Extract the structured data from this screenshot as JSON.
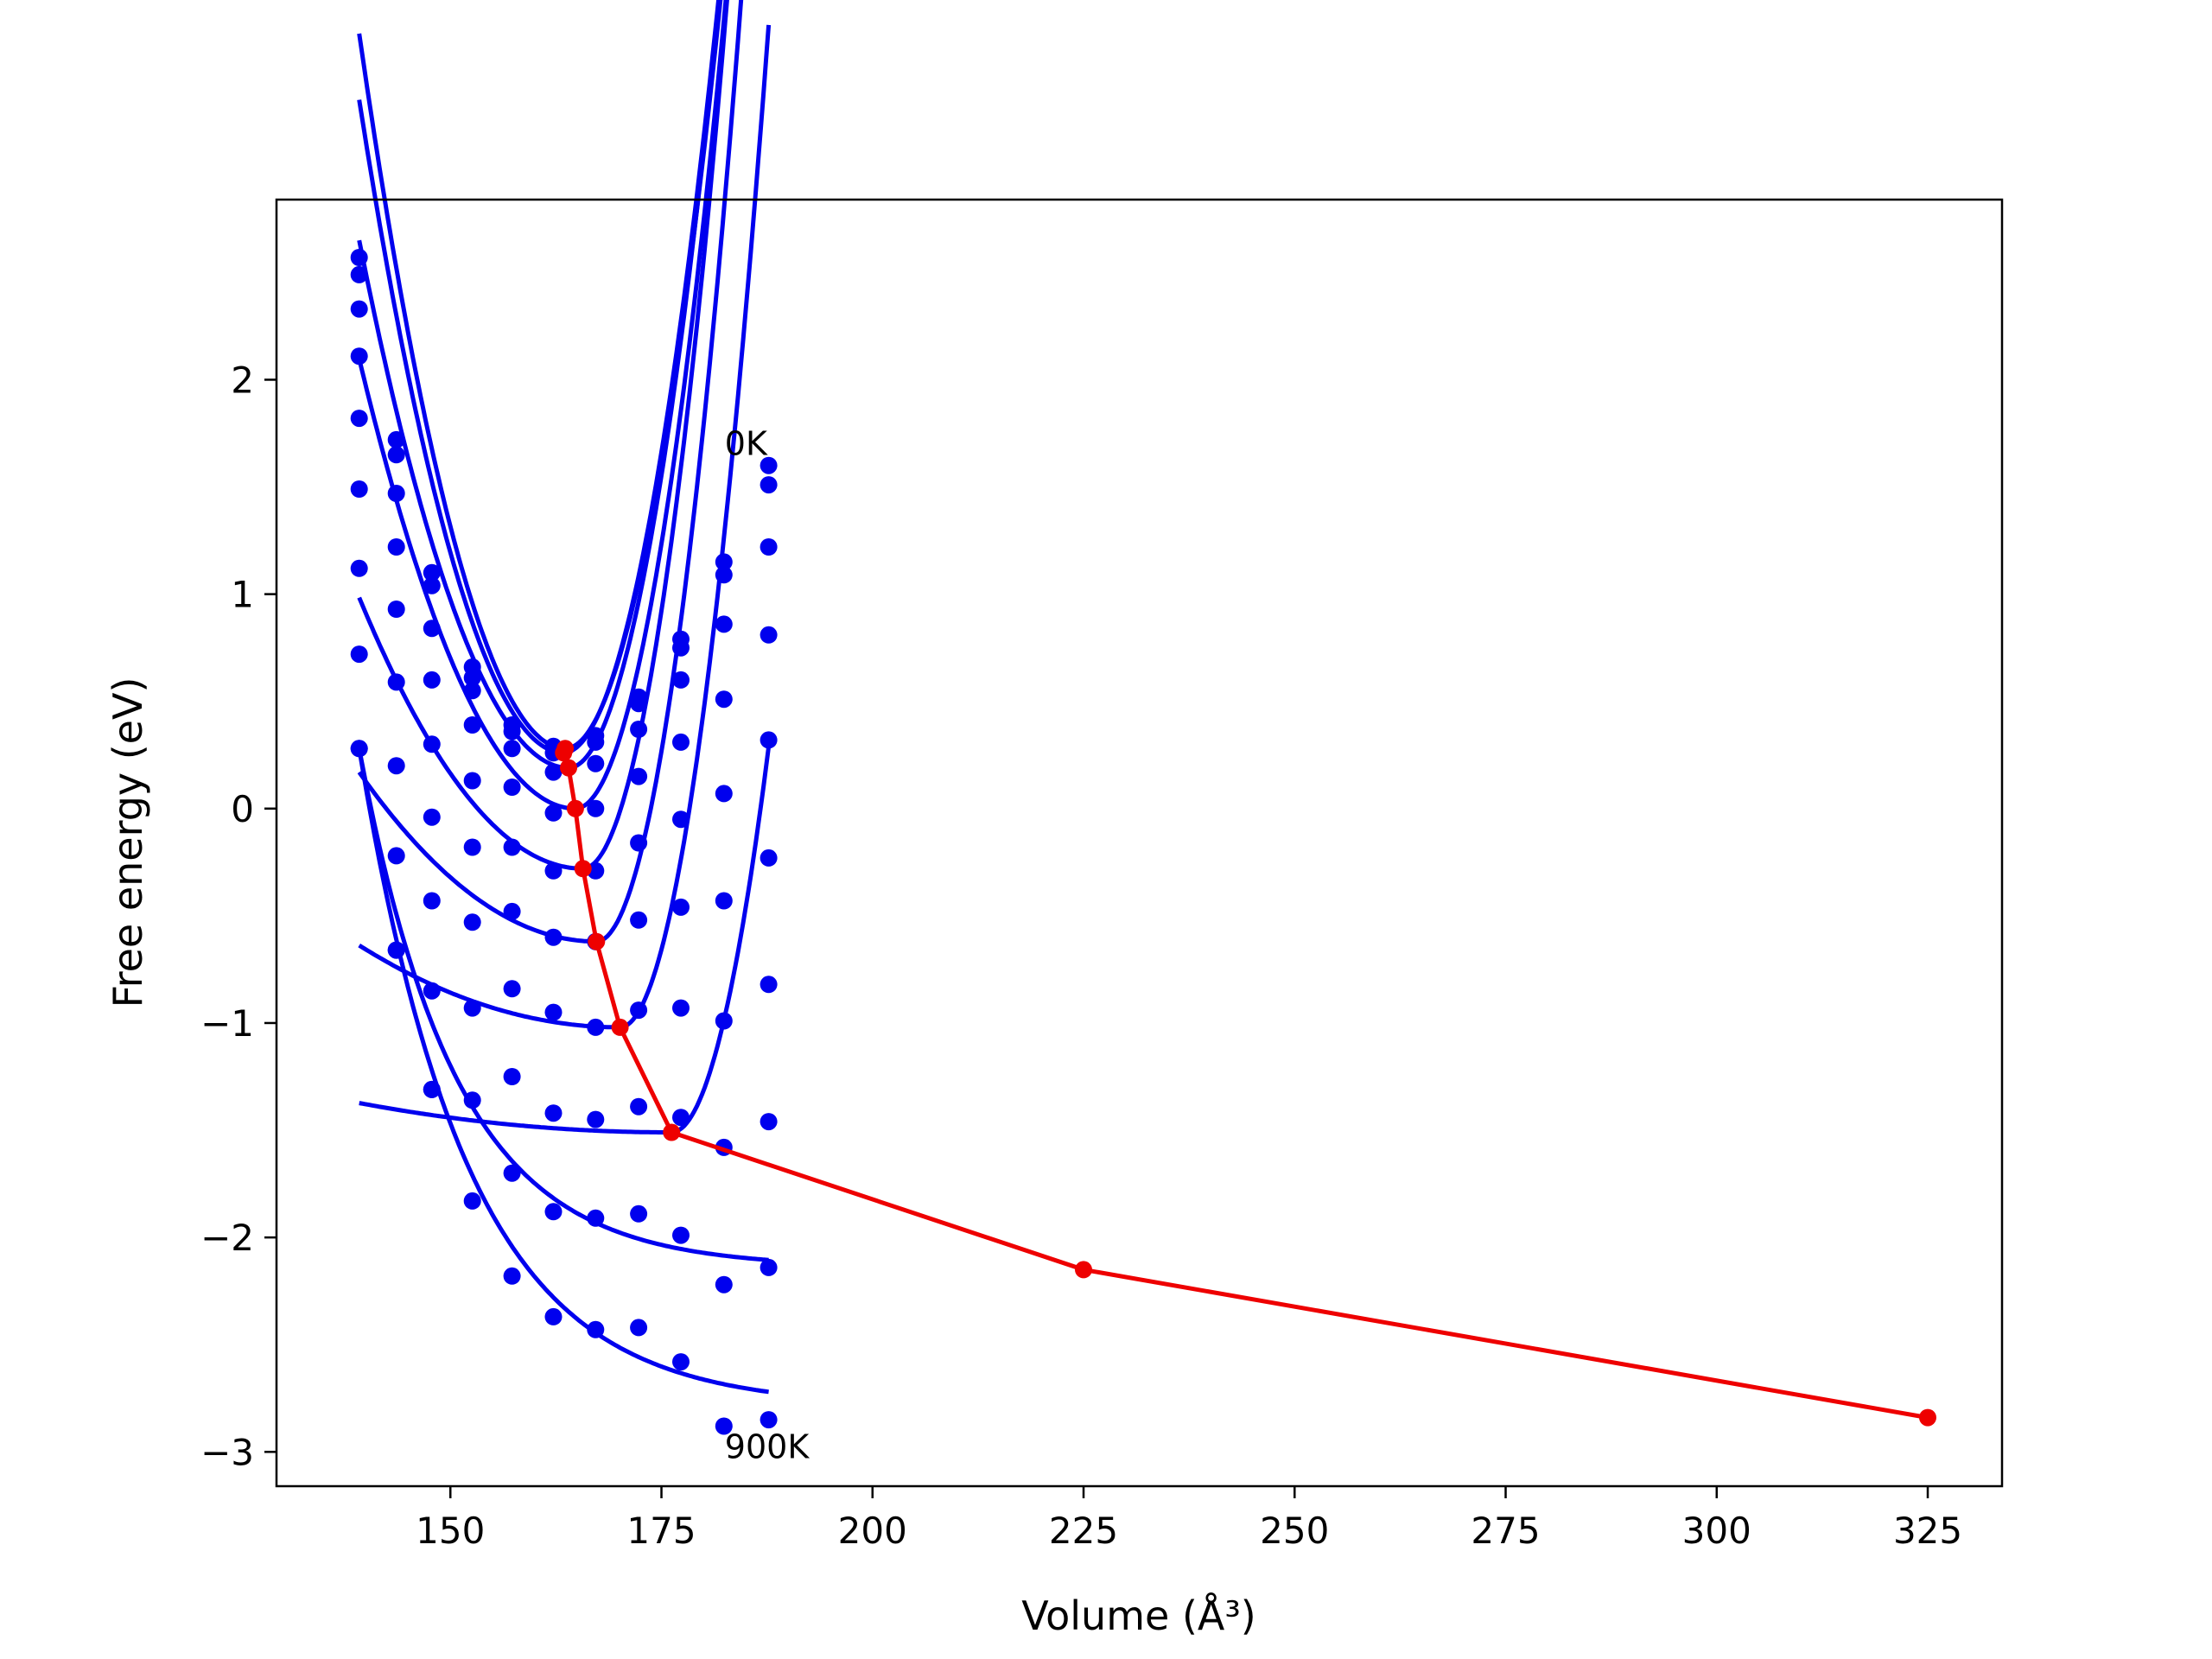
{
  "chart_data": {
    "type": "line",
    "xlabel": "Volume (Å³)",
    "ylabel": "Free energy (eV)",
    "xlim": [
      129.4,
      333.8
    ],
    "ylim": [
      -3.16,
      2.84
    ],
    "xticks": [
      150,
      175,
      200,
      225,
      250,
      275,
      300,
      325
    ],
    "yticks": [
      -3,
      -2,
      -1,
      0,
      1,
      2
    ],
    "ytick_labels": [
      "−3",
      "−2",
      "−1",
      "0",
      "1",
      "2"
    ],
    "grid": false,
    "colors": {
      "isotherm": "#0000ee",
      "minimum": "#ee0000"
    },
    "volumes": [
      139.2,
      143.6,
      147.8,
      152.6,
      157.3,
      162.2,
      167.2,
      172.3,
      177.3,
      182.4,
      187.7
    ],
    "isotherms": [
      {
        "energies": [
          2.57,
          1.72,
          1.1,
          0.66,
          0.39,
          0.29,
          0.34,
          0.52,
          0.79,
          1.15,
          1.6
        ],
        "min": [
          163.6,
          0.28
        ]
      },
      {
        "energies": [
          2.49,
          1.65,
          1.04,
          0.61,
          0.36,
          0.26,
          0.31,
          0.49,
          0.75,
          1.09,
          1.51
        ],
        "min": [
          163.4,
          0.26
        ]
      },
      {
        "energies": [
          2.33,
          1.47,
          0.84,
          0.55,
          0.28,
          0.17,
          0.21,
          0.37,
          0.6,
          0.86,
          1.22
        ],
        "min": [
          164.0,
          0.19
        ]
      },
      {
        "energies": [
          2.11,
          1.22,
          0.6,
          0.39,
          0.1,
          -0.02,
          0.0,
          0.15,
          0.31,
          0.51,
          0.81
        ],
        "min": [
          164.8,
          0.0
        ]
      },
      {
        "energies": [
          1.82,
          0.93,
          0.3,
          0.13,
          -0.18,
          -0.29,
          -0.29,
          -0.16,
          -0.05,
          0.07,
          0.32
        ],
        "min": [
          165.7,
          -0.28
        ]
      },
      {
        "energies": [
          1.49,
          0.59,
          -0.04,
          -0.18,
          -0.48,
          -0.6,
          -0.62,
          -0.52,
          -0.46,
          -0.43,
          -0.23
        ],
        "min": [
          167.3,
          -0.62
        ]
      },
      {
        "energies": [
          1.12,
          0.2,
          -0.43,
          -0.53,
          -0.84,
          -0.95,
          -1.02,
          -0.94,
          -0.93,
          -0.99,
          -0.82
        ],
        "min": [
          170.1,
          -1.02
        ]
      },
      {
        "energies": [
          0.72,
          -0.22,
          -0.85,
          -0.93,
          -1.25,
          -1.42,
          -1.45,
          -1.39,
          -1.44,
          -1.58,
          -1.46
        ],
        "min": [
          176.2,
          -1.51
        ]
      },
      {
        "energies": [
          0.28,
          -0.66,
          -1.31,
          -1.36,
          -1.7,
          -1.88,
          -1.91,
          -1.89,
          -1.99,
          -2.22,
          -2.14
        ],
        "min": [
          225.0,
          -2.15
        ]
      },
      {
        "energies": [
          0.28,
          -0.66,
          -1.31,
          -1.83,
          -2.18,
          -2.37,
          -2.43,
          -2.42,
          -2.58,
          -2.88,
          -2.85
        ],
        "min": [
          325.0,
          -2.84
        ]
      }
    ],
    "curves": [
      {
        "a": 0.0056,
        "b": 0.01032,
        "v0": 163.6,
        "e0": 0.28
      },
      {
        "a": 0.0052,
        "b": 0.01042,
        "v0": 163.4,
        "e0": 0.26
      },
      {
        "a": 0.004,
        "b": 0.01127,
        "v0": 164.0,
        "e0": 0.19
      },
      {
        "a": 0.0032,
        "b": 0.01187,
        "v0": 164.8,
        "e0": 0.0
      },
      {
        "a": 0.0018,
        "b": 0.0139,
        "v0": 165.7,
        "e0": -0.28
      },
      {
        "a": 0.001,
        "b": 0.01496,
        "v0": 167.3,
        "e0": -0.62
      },
      {
        "a": 0.0004,
        "b": 0.01509,
        "v0": 170.1,
        "e0": -1.02
      },
      {
        "a": 0.0001,
        "b": 0.0136,
        "v0": 176.2,
        "e0": -1.51
      },
      {
        "amp": 2.42,
        "k": 0.0875,
        "vs": 139.2,
        "floor": -2.14
      },
      {
        "amp": 3.07,
        "k": 0.078,
        "vs": 139.2,
        "floor": -2.79
      }
    ],
    "minimum_path": {
      "x": [
        163.6,
        163.4,
        164.0,
        164.8,
        165.7,
        167.3,
        170.1,
        176.2,
        225.0,
        325.0
      ],
      "y": [
        0.28,
        0.26,
        0.19,
        0.0,
        -0.28,
        -0.62,
        -1.02,
        -1.51,
        -2.15,
        -2.84
      ]
    },
    "annotations": [
      {
        "text": "0K",
        "x": 182.5,
        "y": 1.65
      },
      {
        "text": "900K",
        "x": 182.5,
        "y": -3.03
      }
    ]
  }
}
